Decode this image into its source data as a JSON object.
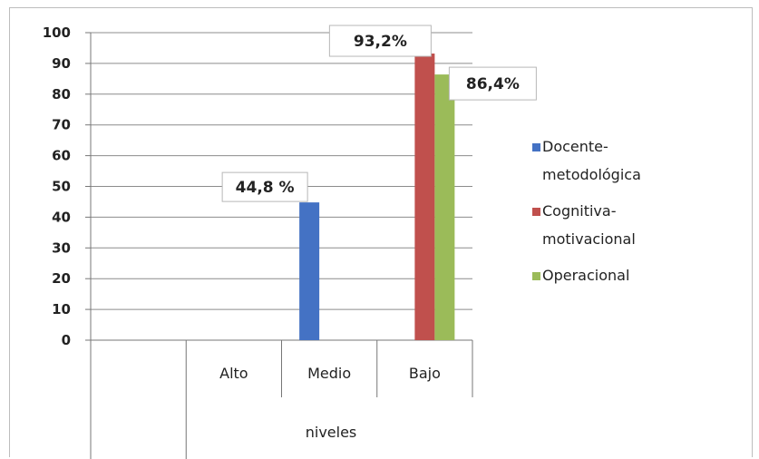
{
  "chart_data": {
    "type": "bar",
    "categories": [
      "Alto",
      "Medio",
      "Bajo"
    ],
    "series": [
      {
        "name": "Docente-metodológica",
        "name_lines": [
          "Docente-",
          "metodológica"
        ],
        "color": "#4472c4",
        "values": [
          null,
          44.8,
          null
        ]
      },
      {
        "name": "Cognitiva-motivacional",
        "name_lines": [
          "Cognitiva-",
          "motivacional"
        ],
        "color": "#c0504d",
        "values": [
          null,
          null,
          93.2
        ]
      },
      {
        "name": "Operacional",
        "name_lines": [
          "Operacional"
        ],
        "color": "#9bbb59",
        "values": [
          null,
          null,
          86.4
        ]
      }
    ],
    "data_labels": [
      "44,8 %",
      "93,2%",
      "86,4%"
    ],
    "yticks": [
      "0",
      "10",
      "20",
      "30",
      "40",
      "50",
      "60",
      "70",
      "80",
      "90",
      "100"
    ],
    "ylim": [
      0,
      100
    ],
    "xlabel": "niveles",
    "ylabel": "",
    "title": "",
    "grid": true,
    "legend_position": "right"
  }
}
